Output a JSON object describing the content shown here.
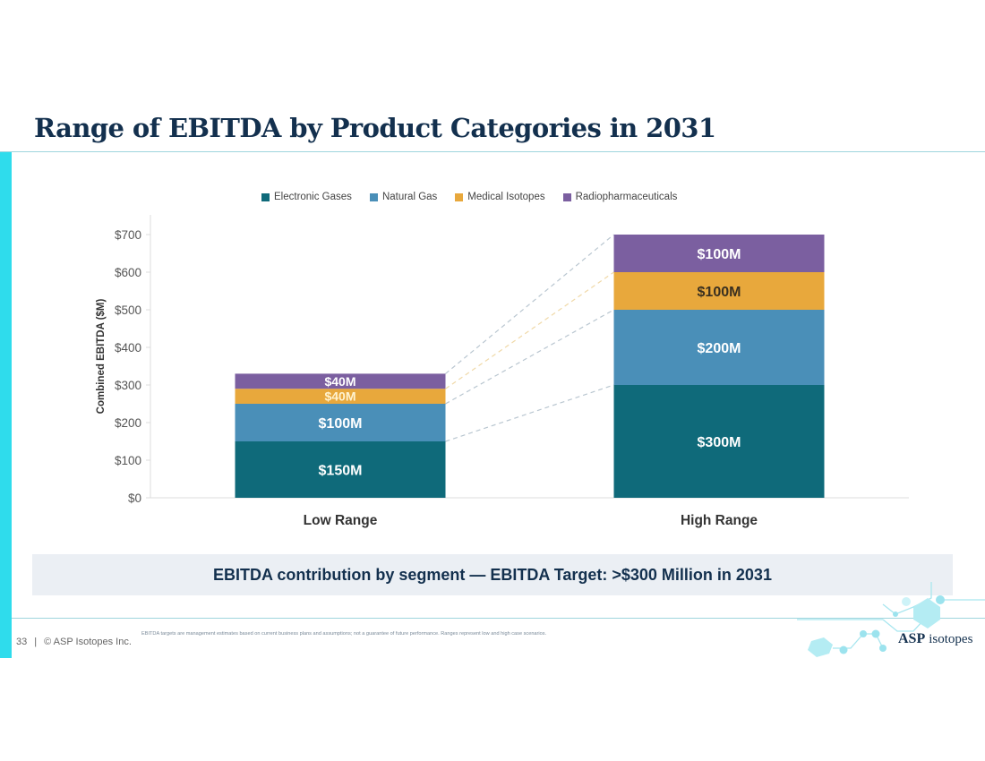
{
  "slide": {
    "title": "Range of EBITDA by Product Categories in 2031",
    "banner": "EBITDA contribution by segment — EBITDA Target: >$300 Million in 2031",
    "page_number": "33",
    "separator": "|",
    "copyright": "© ASP Isotopes Inc.",
    "disclaimer": "EBITDA targets are management estimates based on current business plans and assumptions; not a guarantee of future performance. Ranges represent low and high case scenarios.",
    "logo": {
      "primary": "ASP",
      "secondary": "isotopes"
    },
    "colors": {
      "accent": "#2fdcec",
      "title": "#13304e"
    }
  },
  "chart_data": {
    "type": "bar",
    "stacked": true,
    "title": "",
    "xlabel": "",
    "ylabel": "Combined EBITDA ($M)",
    "ylim": [
      0,
      700
    ],
    "yticks": [
      0,
      100,
      200,
      300,
      400,
      500,
      600,
      700
    ],
    "ytick_labels": [
      "$0",
      "$100",
      "$200",
      "$300",
      "$400",
      "$500",
      "$600",
      "$700"
    ],
    "categories": [
      "Low Range",
      "High Range"
    ],
    "legend_position": "top",
    "grid": false,
    "connector_lines": true,
    "series": [
      {
        "name": "Electronic Gases",
        "color": "#0f6a7a",
        "values": [
          150,
          300
        ],
        "labels": [
          "$150M",
          "$300M"
        ],
        "label_color": "#ffffff"
      },
      {
        "name": "Natural Gas",
        "color": "#4a8fb8",
        "values": [
          100,
          200
        ],
        "labels": [
          "$100M",
          "$200M"
        ],
        "label_color": "#ffffff"
      },
      {
        "name": "Medical Isotopes",
        "color": "#e8a83c",
        "values": [
          40,
          100
        ],
        "labels": [
          "$40M",
          "$100M"
        ],
        "label_color": [
          "#fff3d0",
          "#3a3020"
        ]
      },
      {
        "name": "Radiopharmaceuticals",
        "color": "#7b5fa0",
        "values": [
          40,
          100
        ],
        "labels": [
          "$40M",
          "$100M"
        ],
        "label_color": "#ffffff"
      }
    ]
  }
}
